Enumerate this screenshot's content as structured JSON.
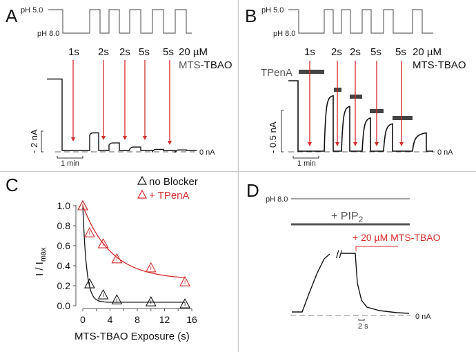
{
  "colors": {
    "red": "#d42a2a",
    "black": "#111111",
    "gray": "#555555",
    "bar": "#444444",
    "divider": "#cccccc"
  },
  "chart_data": [
    {
      "panel": "A",
      "type": "line",
      "ph_high_label": "pH 5.0",
      "ph_low_label": "pH 8.0",
      "exposures": [
        "1s",
        "2s",
        "2s",
        "5s",
        "5s"
      ],
      "reagent_line1": "20 µM",
      "reagent_prefix": "MTS",
      "reagent_suffix": "-TBAO",
      "initial_current_nA": 6.9,
      "pulse_currents_nA": [
        1.7,
        0.73,
        0.33,
        0.1,
        0.05
      ],
      "scale_current": "- 2 nA",
      "scale_time": "1 min",
      "zero_label": "0 nA"
    },
    {
      "panel": "B",
      "type": "line",
      "ph_high_label": "pH 5.0",
      "ph_low_label": "pH 8.0",
      "exposures": [
        "1s",
        "2s",
        "2s",
        "5s",
        "5s"
      ],
      "reagent_line1": "20 µM",
      "reagent_line2": "MTS-TBAO",
      "blocker_label": "TPenA",
      "initial_current_nA": 0.85,
      "recovery_currents_nA": [
        0.67,
        0.54,
        0.4,
        0.33,
        0.22
      ],
      "scale_current": "- 0.5 nA",
      "scale_time": "1 min",
      "zero_label": "0 nA"
    },
    {
      "panel": "C",
      "type": "scatter",
      "xlabel": "MTS-TBAO Exposure (s)",
      "ylabel_main": "I / I",
      "ylabel_sub": "max",
      "xlim": [
        0,
        16
      ],
      "ylim": [
        0,
        1.0
      ],
      "xticks": [
        "0",
        "4",
        "8",
        "12",
        "16"
      ],
      "yticks": [
        "0.0",
        "0.2",
        "0.4",
        "0.6",
        "0.8",
        "1.0"
      ],
      "legend_position": "top-right",
      "series": [
        {
          "name": "no Blocker",
          "color": "#111111",
          "x": [
            0,
            1,
            3,
            5,
            10,
            15
          ],
          "y": [
            1.0,
            0.22,
            0.11,
            0.06,
            0.04,
            0.02
          ],
          "fit": {
            "plateau": 0.035,
            "tau": 0.55
          }
        },
        {
          "name": "+ TPenA",
          "color": "#d42a2a",
          "x": [
            0,
            1,
            3,
            5,
            10,
            15
          ],
          "y": [
            1.0,
            0.73,
            0.62,
            0.47,
            0.38,
            0.24
          ],
          "fit": {
            "plateau": 0.26,
            "tau": 4.2
          }
        }
      ]
    },
    {
      "panel": "D",
      "type": "line",
      "ph_label": "pH 8.0",
      "pip2_main": "+ PIP",
      "pip2_sub": "2",
      "reagent_label": "+ 20 µM MTS-TBAO",
      "break_mark": "//",
      "scale_time": "2 s",
      "zero_label": "0 nA"
    }
  ]
}
